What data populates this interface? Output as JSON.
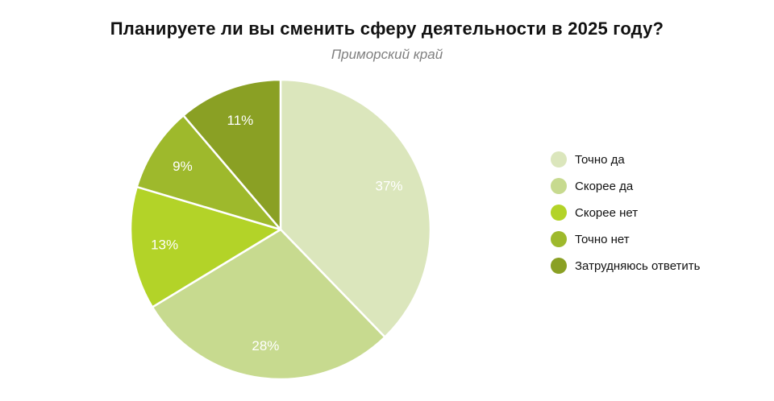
{
  "title": "Планируете ли вы сменить сферу деятельности в 2025 году?",
  "subtitle": "Приморский край",
  "chart_data": {
    "type": "pie",
    "title": "Планируете ли вы сменить сферу деятельности в 2025 году?",
    "subtitle": "Приморский край",
    "start_angle_deg": 0,
    "direction": "clockwise",
    "legend_position": "right",
    "label_color": "#ffffff",
    "slices": [
      {
        "label": "Точно да",
        "value": 37,
        "display": "37%",
        "color": "#dbe6bc"
      },
      {
        "label": "Скорее да",
        "value": 28,
        "display": "28%",
        "color": "#c7da8f"
      },
      {
        "label": "Скорее нет",
        "value": 13,
        "display": "13%",
        "color": "#b3d328"
      },
      {
        "label": "Точно нет",
        "value": 9,
        "display": "9%",
        "color": "#9eb92c"
      },
      {
        "label": "Затрудняюсь ответить",
        "value": 11,
        "display": "11%",
        "color": "#8aa024"
      }
    ]
  }
}
